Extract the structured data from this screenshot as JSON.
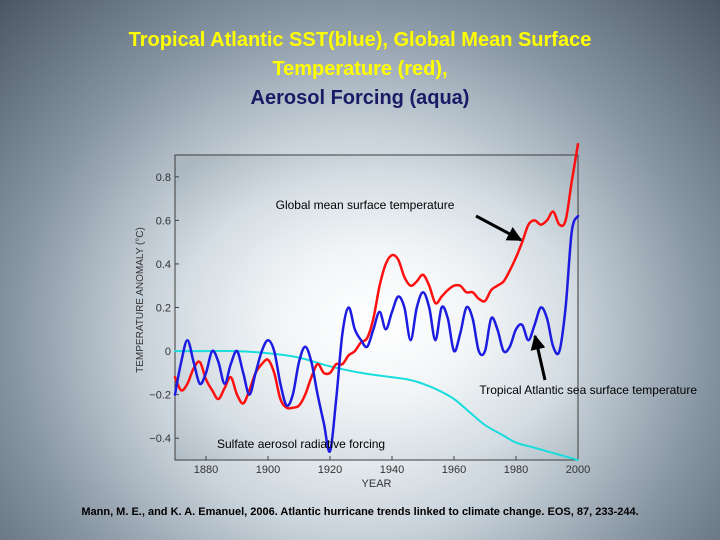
{
  "slide": {
    "title_line1": "Tropical Atlantic SST(blue), Global Mean Surface",
    "title_line2": "Temperature (red),",
    "title_line3": "Aerosol Forcing (aqua)",
    "citation": "Mann, M. E., and K. A. Emanuel, 2006. Atlantic hurricane trends linked to climate change. EOS, 87, 233-244."
  },
  "chart_data": {
    "type": "line",
    "xlabel": "YEAR",
    "ylabel": "TEMPERATURE ANOMALY (°C)",
    "xlim": [
      1870,
      2000
    ],
    "ylim": [
      -0.5,
      0.9
    ],
    "xticks": [
      1880,
      1900,
      1920,
      1940,
      1960,
      1980,
      2000
    ],
    "yticks": [
      -0.4,
      -0.2,
      0,
      0.2,
      0.4,
      0.6,
      0.8
    ],
    "ytick_labels": [
      "−0.4",
      "−0.2",
      "0",
      "0.2",
      "0.4",
      "0.6",
      "0.8"
    ],
    "colors": {
      "red": "#ff1010",
      "blue": "#1c1ce0",
      "aqua": "#19dcdc",
      "annotation": "#000000"
    },
    "series": [
      {
        "name": "Global mean surface temperature",
        "color": "red",
        "x": [
          1870,
          1872,
          1874,
          1876,
          1878,
          1880,
          1882,
          1884,
          1886,
          1888,
          1890,
          1892,
          1894,
          1896,
          1898,
          1900,
          1902,
          1904,
          1906,
          1908,
          1910,
          1912,
          1914,
          1916,
          1918,
          1920,
          1922,
          1924,
          1926,
          1928,
          1930,
          1932,
          1934,
          1936,
          1938,
          1940,
          1942,
          1944,
          1946,
          1948,
          1950,
          1952,
          1954,
          1956,
          1958,
          1960,
          1962,
          1964,
          1966,
          1968,
          1970,
          1972,
          1974,
          1976,
          1978,
          1980,
          1982,
          1984,
          1986,
          1988,
          1990,
          1992,
          1994,
          1996,
          1998,
          2000
        ],
        "values": [
          -0.12,
          -0.18,
          -0.15,
          -0.08,
          -0.05,
          -0.13,
          -0.18,
          -0.22,
          -0.17,
          -0.12,
          -0.2,
          -0.24,
          -0.18,
          -0.1,
          -0.06,
          -0.04,
          -0.1,
          -0.22,
          -0.26,
          -0.26,
          -0.25,
          -0.2,
          -0.12,
          -0.06,
          -0.1,
          -0.1,
          -0.06,
          -0.06,
          -0.02,
          0.0,
          0.04,
          0.06,
          0.15,
          0.3,
          0.4,
          0.44,
          0.42,
          0.34,
          0.3,
          0.32,
          0.35,
          0.3,
          0.22,
          0.25,
          0.28,
          0.3,
          0.3,
          0.27,
          0.27,
          0.24,
          0.23,
          0.28,
          0.3,
          0.32,
          0.37,
          0.43,
          0.5,
          0.58,
          0.6,
          0.58,
          0.6,
          0.64,
          0.58,
          0.6,
          0.78,
          0.95
        ]
      },
      {
        "name": "Tropical Atlantic sea surface temperature",
        "color": "blue",
        "x": [
          1870,
          1872,
          1874,
          1876,
          1878,
          1880,
          1882,
          1884,
          1886,
          1888,
          1890,
          1892,
          1894,
          1896,
          1898,
          1900,
          1902,
          1904,
          1906,
          1908,
          1910,
          1912,
          1914,
          1916,
          1918,
          1920,
          1922,
          1924,
          1926,
          1928,
          1930,
          1932,
          1934,
          1936,
          1938,
          1940,
          1942,
          1944,
          1946,
          1948,
          1950,
          1952,
          1954,
          1956,
          1958,
          1960,
          1962,
          1964,
          1966,
          1968,
          1970,
          1972,
          1974,
          1976,
          1978,
          1980,
          1982,
          1984,
          1986,
          1988,
          1990,
          1992,
          1994,
          1996,
          1998,
          2000
        ],
        "values": [
          -0.2,
          -0.05,
          0.05,
          -0.05,
          -0.15,
          -0.1,
          0.0,
          -0.05,
          -0.15,
          -0.06,
          0.0,
          -0.1,
          -0.2,
          -0.1,
          0.0,
          0.05,
          0.0,
          -0.15,
          -0.25,
          -0.2,
          -0.05,
          0.02,
          -0.05,
          -0.2,
          -0.33,
          -0.46,
          -0.22,
          0.08,
          0.2,
          0.1,
          0.05,
          0.02,
          0.1,
          0.18,
          0.1,
          0.18,
          0.25,
          0.2,
          0.05,
          0.2,
          0.27,
          0.2,
          0.05,
          0.2,
          0.15,
          0.0,
          0.08,
          0.2,
          0.15,
          0.0,
          0.0,
          0.15,
          0.1,
          0.0,
          0.02,
          0.1,
          0.12,
          0.05,
          0.12,
          0.2,
          0.15,
          0.02,
          0.0,
          0.2,
          0.55,
          0.62
        ]
      },
      {
        "name": "Sulfate aerosol radiative forcing",
        "color": "aqua",
        "x": [
          1870,
          1880,
          1890,
          1900,
          1910,
          1920,
          1930,
          1940,
          1945,
          1950,
          1955,
          1960,
          1965,
          1970,
          1975,
          1980,
          1985,
          1990,
          1995,
          2000
        ],
        "values": [
          0.0,
          0.0,
          0.0,
          -0.01,
          -0.03,
          -0.07,
          -0.1,
          -0.12,
          -0.13,
          -0.15,
          -0.18,
          -0.22,
          -0.28,
          -0.34,
          -0.38,
          -0.42,
          -0.44,
          -0.46,
          -0.48,
          -0.5
        ]
      }
    ],
    "annotations": [
      {
        "text": "Global mean surface temperature"
      },
      {
        "text": "Tropical Atlantic sea surface temperature"
      },
      {
        "text": "Sulfate aerosol radiative forcing"
      }
    ]
  }
}
